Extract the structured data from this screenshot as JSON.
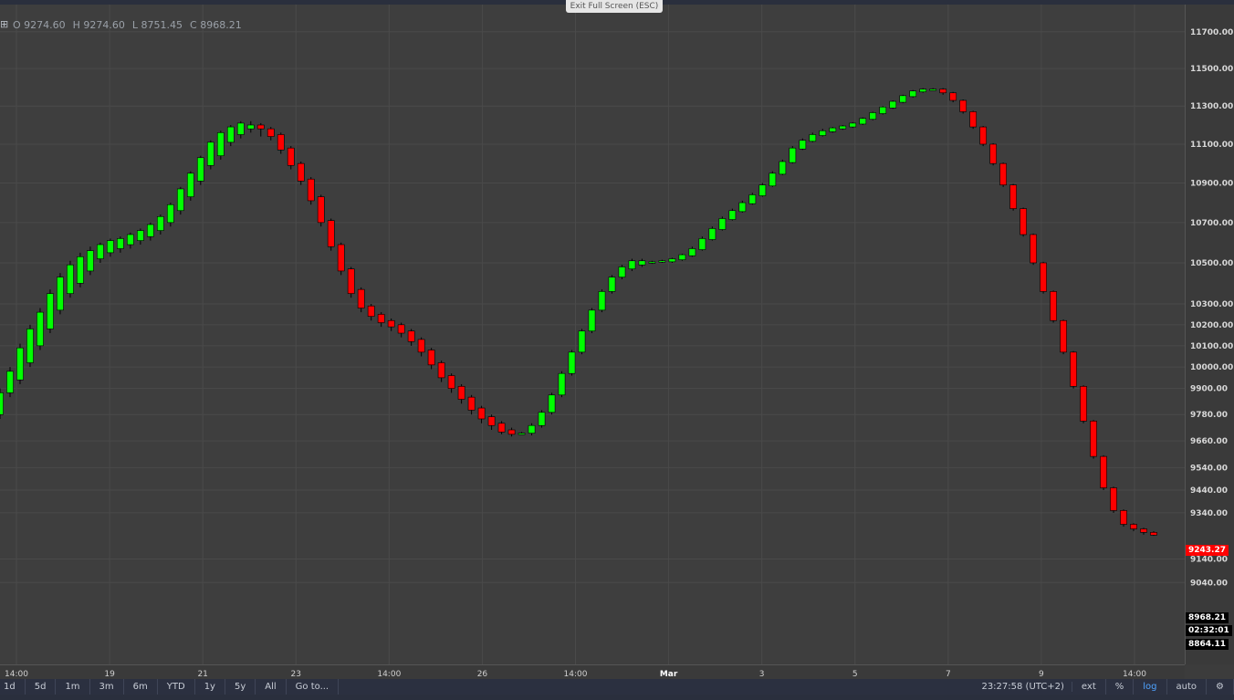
{
  "exit_fullscreen_label": "Exit Full Screen (ESC)",
  "ohlc": {
    "open": "O 9274.60",
    "high": "H 9274.60",
    "low": "L 8751.45",
    "close": "C 8968.21"
  },
  "toolbar": {
    "ranges": [
      "1d",
      "5d",
      "1m",
      "3m",
      "6m",
      "YTD",
      "1y",
      "5y",
      "All"
    ],
    "goto": "Go to...",
    "clock": "23:27:58 (UTC+2)",
    "ext": "ext",
    "percent": "%",
    "log": "log",
    "auto": "auto"
  },
  "price_tags": {
    "last": "9243.27",
    "crosshair_high": "8968.21",
    "countdown": "02:32:01",
    "crosshair_low": "8864.11"
  },
  "colors": {
    "up": "#00ff00",
    "down": "#ff0000",
    "background": "#3e3e3e",
    "grid": "#4a4a4a"
  },
  "chart_data": {
    "type": "candlestick",
    "y_scale": "log",
    "ylim": [
      8700,
      11850
    ],
    "y_ticks": [
      {
        "v": 11700,
        "label": "11700.00"
      },
      {
        "v": 11500,
        "label": "11500.00"
      },
      {
        "v": 11300,
        "label": "11300.00"
      },
      {
        "v": 11100,
        "label": "11100.00"
      },
      {
        "v": 10900,
        "label": "10900.00"
      },
      {
        "v": 10700,
        "label": "10700.00"
      },
      {
        "v": 10500,
        "label": "10500.00"
      },
      {
        "v": 10300,
        "label": "10300.00"
      },
      {
        "v": 10200,
        "label": "10200.00"
      },
      {
        "v": 10100,
        "label": "10100.00"
      },
      {
        "v": 10000,
        "label": "10000.00"
      },
      {
        "v": 9900,
        "label": "9900.00"
      },
      {
        "v": 9780,
        "label": "9780.00"
      },
      {
        "v": 9660,
        "label": "9660.00"
      },
      {
        "v": 9540,
        "label": "9540.00"
      },
      {
        "v": 9440,
        "label": "9440.00"
      },
      {
        "v": 9340,
        "label": "9340.00"
      },
      {
        "v": 9140,
        "label": "9140.00"
      },
      {
        "v": 9040,
        "label": "9040.00"
      }
    ],
    "x_ticks": [
      "14:00",
      "19",
      "21",
      "23",
      "14:00",
      "26",
      "14:00",
      "Mar",
      "3",
      "5",
      "7",
      "9",
      "14:00"
    ],
    "candles": [
      [
        9780,
        9900,
        9760,
        9880
      ],
      [
        9880,
        10000,
        9860,
        9980
      ],
      [
        9940,
        10110,
        9920,
        10090
      ],
      [
        10020,
        10200,
        10000,
        10180
      ],
      [
        10100,
        10280,
        10080,
        10260
      ],
      [
        10180,
        10370,
        10160,
        10350
      ],
      [
        10270,
        10450,
        10250,
        10430
      ],
      [
        10350,
        10510,
        10330,
        10490
      ],
      [
        10400,
        10550,
        10380,
        10530
      ],
      [
        10460,
        10580,
        10440,
        10560
      ],
      [
        10520,
        10600,
        10500,
        10590
      ],
      [
        10550,
        10620,
        10530,
        10610
      ],
      [
        10570,
        10630,
        10550,
        10620
      ],
      [
        10590,
        10650,
        10570,
        10640
      ],
      [
        10610,
        10670,
        10590,
        10660
      ],
      [
        10630,
        10700,
        10610,
        10690
      ],
      [
        10660,
        10740,
        10640,
        10730
      ],
      [
        10700,
        10800,
        10680,
        10790
      ],
      [
        10760,
        10880,
        10740,
        10870
      ],
      [
        10830,
        10960,
        10810,
        10950
      ],
      [
        10910,
        11040,
        10890,
        11030
      ],
      [
        10990,
        11120,
        10970,
        11110
      ],
      [
        11040,
        11170,
        11020,
        11160
      ],
      [
        11110,
        11200,
        11090,
        11190
      ],
      [
        11150,
        11220,
        11130,
        11210
      ],
      [
        11180,
        11220,
        11160,
        11200
      ],
      [
        11200,
        11210,
        11140,
        11180
      ],
      [
        11180,
        11190,
        11120,
        11140
      ],
      [
        11150,
        11160,
        11050,
        11070
      ],
      [
        11080,
        11090,
        10970,
        10990
      ],
      [
        11000,
        11010,
        10890,
        10910
      ],
      [
        10920,
        10930,
        10790,
        10810
      ],
      [
        10830,
        10840,
        10680,
        10700
      ],
      [
        10710,
        10720,
        10560,
        10580
      ],
      [
        10590,
        10600,
        10440,
        10460
      ],
      [
        10470,
        10480,
        10330,
        10350
      ],
      [
        10370,
        10380,
        10260,
        10280
      ],
      [
        10290,
        10300,
        10220,
        10240
      ],
      [
        10250,
        10260,
        10190,
        10210
      ],
      [
        10220,
        10230,
        10170,
        10190
      ],
      [
        10200,
        10210,
        10140,
        10160
      ],
      [
        10170,
        10180,
        10100,
        10120
      ],
      [
        10130,
        10140,
        10050,
        10070
      ],
      [
        10080,
        10090,
        9990,
        10010
      ],
      [
        10020,
        10030,
        9930,
        9950
      ],
      [
        9960,
        9970,
        9880,
        9900
      ],
      [
        9910,
        9920,
        9830,
        9850
      ],
      [
        9860,
        9870,
        9780,
        9800
      ],
      [
        9810,
        9820,
        9740,
        9760
      ],
      [
        9770,
        9780,
        9710,
        9730
      ],
      [
        9740,
        9750,
        9690,
        9700
      ],
      [
        9710,
        9720,
        9680,
        9690
      ],
      [
        9690,
        9700,
        9690,
        9695
      ],
      [
        9695,
        9740,
        9685,
        9730
      ],
      [
        9730,
        9800,
        9720,
        9790
      ],
      [
        9790,
        9880,
        9780,
        9870
      ],
      [
        9870,
        9980,
        9860,
        9970
      ],
      [
        9970,
        10080,
        9960,
        10070
      ],
      [
        10070,
        10180,
        10060,
        10170
      ],
      [
        10170,
        10280,
        10160,
        10270
      ],
      [
        10270,
        10370,
        10260,
        10360
      ],
      [
        10360,
        10440,
        10350,
        10430
      ],
      [
        10430,
        10490,
        10420,
        10480
      ],
      [
        10470,
        10520,
        10460,
        10510
      ],
      [
        10490,
        10520,
        10480,
        10510
      ],
      [
        10500,
        10510,
        10495,
        10505
      ],
      [
        10505,
        10515,
        10500,
        10510
      ],
      [
        10505,
        10525,
        10500,
        10520
      ],
      [
        10515,
        10545,
        10510,
        10540
      ],
      [
        10535,
        10580,
        10530,
        10570
      ],
      [
        10565,
        10630,
        10560,
        10620
      ],
      [
        10615,
        10680,
        10610,
        10670
      ],
      [
        10665,
        10730,
        10660,
        10720
      ],
      [
        10715,
        10770,
        10710,
        10760
      ],
      [
        10755,
        10810,
        10750,
        10800
      ],
      [
        10795,
        10850,
        10790,
        10840
      ],
      [
        10835,
        10900,
        10830,
        10890
      ],
      [
        10885,
        10960,
        10880,
        10950
      ],
      [
        10945,
        11020,
        10940,
        11010
      ],
      [
        11005,
        11090,
        11000,
        11080
      ],
      [
        11075,
        11130,
        11070,
        11120
      ],
      [
        11115,
        11160,
        11110,
        11150
      ],
      [
        11145,
        11180,
        11140,
        11170
      ],
      [
        11165,
        11190,
        11160,
        11185
      ],
      [
        11180,
        11200,
        11175,
        11195
      ],
      [
        11190,
        11215,
        11185,
        11210
      ],
      [
        11205,
        11240,
        11200,
        11235
      ],
      [
        11230,
        11270,
        11225,
        11265
      ],
      [
        11260,
        11300,
        11255,
        11295
      ],
      [
        11290,
        11330,
        11285,
        11325
      ],
      [
        11320,
        11360,
        11315,
        11355
      ],
      [
        11350,
        11385,
        11345,
        11380
      ],
      [
        11375,
        11395,
        11370,
        11390
      ],
      [
        11390,
        11395,
        11385,
        11390
      ],
      [
        11390,
        11395,
        11360,
        11370
      ],
      [
        11370,
        11375,
        11320,
        11330
      ],
      [
        11330,
        11335,
        11260,
        11270
      ],
      [
        11270,
        11275,
        11180,
        11190
      ],
      [
        11190,
        11195,
        11090,
        11100
      ],
      [
        11100,
        11105,
        10990,
        11000
      ],
      [
        11000,
        11005,
        10880,
        10890
      ],
      [
        10890,
        10895,
        10760,
        10770
      ],
      [
        10770,
        10775,
        10630,
        10640
      ],
      [
        10640,
        10645,
        10490,
        10500
      ],
      [
        10500,
        10505,
        10350,
        10360
      ],
      [
        10360,
        10365,
        10210,
        10220
      ],
      [
        10220,
        10225,
        10060,
        10070
      ],
      [
        10070,
        10075,
        9900,
        9910
      ],
      [
        9910,
        9915,
        9740,
        9750
      ],
      [
        9750,
        9755,
        9580,
        9590
      ],
      [
        9590,
        9595,
        9440,
        9450
      ],
      [
        9450,
        9455,
        9340,
        9350
      ],
      [
        9350,
        9355,
        9280,
        9290
      ],
      [
        9290,
        9295,
        9260,
        9270
      ],
      [
        9270,
        9275,
        9245,
        9255
      ],
      [
        9255,
        9260,
        9240,
        9243
      ]
    ],
    "last_price": 9243.27
  }
}
